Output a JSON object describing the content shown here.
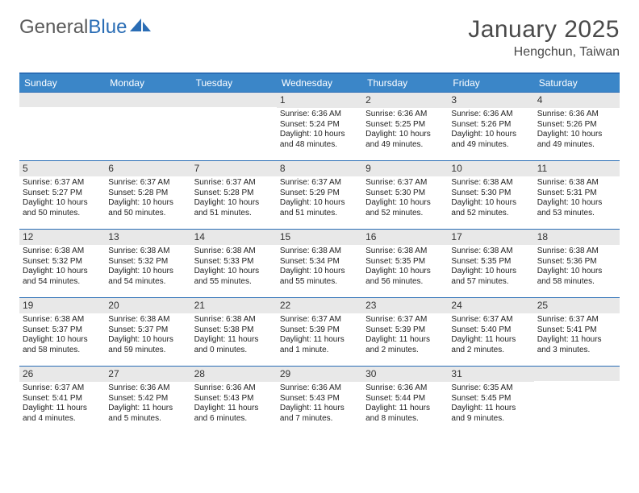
{
  "logo": {
    "part1": "General",
    "part2": "Blue"
  },
  "title": "January 2025",
  "location": "Hengchun, Taiwan",
  "colors": {
    "header_bg": "#3b86c8",
    "header_border": "#2a6db5",
    "daynum_bg": "#e8e8e8",
    "text": "#222222",
    "title_color": "#4a4a4a"
  },
  "weekdays": [
    "Sunday",
    "Monday",
    "Tuesday",
    "Wednesday",
    "Thursday",
    "Friday",
    "Saturday"
  ],
  "weeks": [
    [
      {
        "n": "",
        "sr": "",
        "ss": "",
        "dl": ""
      },
      {
        "n": "",
        "sr": "",
        "ss": "",
        "dl": ""
      },
      {
        "n": "",
        "sr": "",
        "ss": "",
        "dl": ""
      },
      {
        "n": "1",
        "sr": "Sunrise: 6:36 AM",
        "ss": "Sunset: 5:24 PM",
        "dl": "Daylight: 10 hours and 48 minutes."
      },
      {
        "n": "2",
        "sr": "Sunrise: 6:36 AM",
        "ss": "Sunset: 5:25 PM",
        "dl": "Daylight: 10 hours and 49 minutes."
      },
      {
        "n": "3",
        "sr": "Sunrise: 6:36 AM",
        "ss": "Sunset: 5:26 PM",
        "dl": "Daylight: 10 hours and 49 minutes."
      },
      {
        "n": "4",
        "sr": "Sunrise: 6:36 AM",
        "ss": "Sunset: 5:26 PM",
        "dl": "Daylight: 10 hours and 49 minutes."
      }
    ],
    [
      {
        "n": "5",
        "sr": "Sunrise: 6:37 AM",
        "ss": "Sunset: 5:27 PM",
        "dl": "Daylight: 10 hours and 50 minutes."
      },
      {
        "n": "6",
        "sr": "Sunrise: 6:37 AM",
        "ss": "Sunset: 5:28 PM",
        "dl": "Daylight: 10 hours and 50 minutes."
      },
      {
        "n": "7",
        "sr": "Sunrise: 6:37 AM",
        "ss": "Sunset: 5:28 PM",
        "dl": "Daylight: 10 hours and 51 minutes."
      },
      {
        "n": "8",
        "sr": "Sunrise: 6:37 AM",
        "ss": "Sunset: 5:29 PM",
        "dl": "Daylight: 10 hours and 51 minutes."
      },
      {
        "n": "9",
        "sr": "Sunrise: 6:37 AM",
        "ss": "Sunset: 5:30 PM",
        "dl": "Daylight: 10 hours and 52 minutes."
      },
      {
        "n": "10",
        "sr": "Sunrise: 6:38 AM",
        "ss": "Sunset: 5:30 PM",
        "dl": "Daylight: 10 hours and 52 minutes."
      },
      {
        "n": "11",
        "sr": "Sunrise: 6:38 AM",
        "ss": "Sunset: 5:31 PM",
        "dl": "Daylight: 10 hours and 53 minutes."
      }
    ],
    [
      {
        "n": "12",
        "sr": "Sunrise: 6:38 AM",
        "ss": "Sunset: 5:32 PM",
        "dl": "Daylight: 10 hours and 54 minutes."
      },
      {
        "n": "13",
        "sr": "Sunrise: 6:38 AM",
        "ss": "Sunset: 5:32 PM",
        "dl": "Daylight: 10 hours and 54 minutes."
      },
      {
        "n": "14",
        "sr": "Sunrise: 6:38 AM",
        "ss": "Sunset: 5:33 PM",
        "dl": "Daylight: 10 hours and 55 minutes."
      },
      {
        "n": "15",
        "sr": "Sunrise: 6:38 AM",
        "ss": "Sunset: 5:34 PM",
        "dl": "Daylight: 10 hours and 55 minutes."
      },
      {
        "n": "16",
        "sr": "Sunrise: 6:38 AM",
        "ss": "Sunset: 5:35 PM",
        "dl": "Daylight: 10 hours and 56 minutes."
      },
      {
        "n": "17",
        "sr": "Sunrise: 6:38 AM",
        "ss": "Sunset: 5:35 PM",
        "dl": "Daylight: 10 hours and 57 minutes."
      },
      {
        "n": "18",
        "sr": "Sunrise: 6:38 AM",
        "ss": "Sunset: 5:36 PM",
        "dl": "Daylight: 10 hours and 58 minutes."
      }
    ],
    [
      {
        "n": "19",
        "sr": "Sunrise: 6:38 AM",
        "ss": "Sunset: 5:37 PM",
        "dl": "Daylight: 10 hours and 58 minutes."
      },
      {
        "n": "20",
        "sr": "Sunrise: 6:38 AM",
        "ss": "Sunset: 5:37 PM",
        "dl": "Daylight: 10 hours and 59 minutes."
      },
      {
        "n": "21",
        "sr": "Sunrise: 6:38 AM",
        "ss": "Sunset: 5:38 PM",
        "dl": "Daylight: 11 hours and 0 minutes."
      },
      {
        "n": "22",
        "sr": "Sunrise: 6:37 AM",
        "ss": "Sunset: 5:39 PM",
        "dl": "Daylight: 11 hours and 1 minute."
      },
      {
        "n": "23",
        "sr": "Sunrise: 6:37 AM",
        "ss": "Sunset: 5:39 PM",
        "dl": "Daylight: 11 hours and 2 minutes."
      },
      {
        "n": "24",
        "sr": "Sunrise: 6:37 AM",
        "ss": "Sunset: 5:40 PM",
        "dl": "Daylight: 11 hours and 2 minutes."
      },
      {
        "n": "25",
        "sr": "Sunrise: 6:37 AM",
        "ss": "Sunset: 5:41 PM",
        "dl": "Daylight: 11 hours and 3 minutes."
      }
    ],
    [
      {
        "n": "26",
        "sr": "Sunrise: 6:37 AM",
        "ss": "Sunset: 5:41 PM",
        "dl": "Daylight: 11 hours and 4 minutes."
      },
      {
        "n": "27",
        "sr": "Sunrise: 6:36 AM",
        "ss": "Sunset: 5:42 PM",
        "dl": "Daylight: 11 hours and 5 minutes."
      },
      {
        "n": "28",
        "sr": "Sunrise: 6:36 AM",
        "ss": "Sunset: 5:43 PM",
        "dl": "Daylight: 11 hours and 6 minutes."
      },
      {
        "n": "29",
        "sr": "Sunrise: 6:36 AM",
        "ss": "Sunset: 5:43 PM",
        "dl": "Daylight: 11 hours and 7 minutes."
      },
      {
        "n": "30",
        "sr": "Sunrise: 6:36 AM",
        "ss": "Sunset: 5:44 PM",
        "dl": "Daylight: 11 hours and 8 minutes."
      },
      {
        "n": "31",
        "sr": "Sunrise: 6:35 AM",
        "ss": "Sunset: 5:45 PM",
        "dl": "Daylight: 11 hours and 9 minutes."
      },
      {
        "n": "",
        "sr": "",
        "ss": "",
        "dl": ""
      }
    ]
  ]
}
